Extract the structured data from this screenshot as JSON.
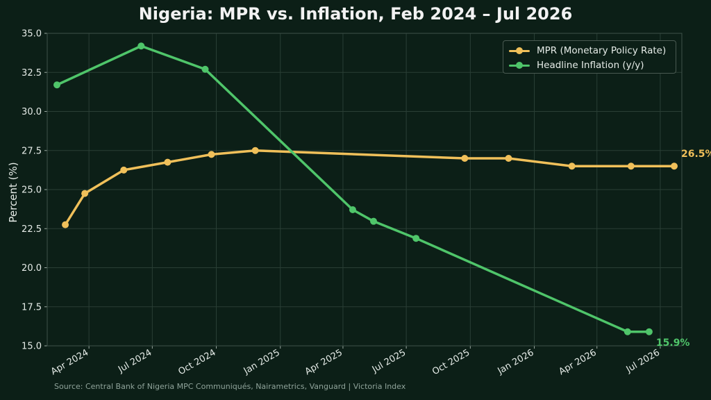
{
  "chart_data": {
    "type": "line",
    "title": "Nigeria: MPR vs. Inflation, Feb 2024 – Jul 2026",
    "xlabel": "",
    "ylabel": "Percent (%)",
    "ylim": [
      15.0,
      35.0
    ],
    "yticks": [
      "15.0",
      "17.5",
      "20.0",
      "22.5",
      "25.0",
      "27.5",
      "30.0",
      "32.5",
      "35.0"
    ],
    "xlim": [
      "2024-02-01",
      "2026-08-01"
    ],
    "xticks": [
      {
        "date": "2024-04-01",
        "label": "Apr 2024"
      },
      {
        "date": "2024-07-01",
        "label": "Jul 2024"
      },
      {
        "date": "2024-10-01",
        "label": "Oct 2024"
      },
      {
        "date": "2025-01-01",
        "label": "Jan 2025"
      },
      {
        "date": "2025-04-01",
        "label": "Apr 2025"
      },
      {
        "date": "2025-07-01",
        "label": "Jul 2025"
      },
      {
        "date": "2025-10-01",
        "label": "Oct 2025"
      },
      {
        "date": "2026-01-01",
        "label": "Jan 2026"
      },
      {
        "date": "2026-04-01",
        "label": "Apr 2026"
      },
      {
        "date": "2026-07-01",
        "label": "Jul 2026"
      }
    ],
    "grid": true,
    "legend_position": "top-right",
    "series": [
      {
        "name": "MPR (Monetary Policy Rate)",
        "color": "#f0c05a",
        "points": [
          {
            "x": "2024-02-27",
            "y": 22.75
          },
          {
            "x": "2024-03-26",
            "y": 24.75
          },
          {
            "x": "2024-05-21",
            "y": 26.25
          },
          {
            "x": "2024-07-23",
            "y": 26.75
          },
          {
            "x": "2024-09-24",
            "y": 27.25
          },
          {
            "x": "2024-11-26",
            "y": 27.5
          },
          {
            "x": "2025-09-23",
            "y": 27.0
          },
          {
            "x": "2025-11-25",
            "y": 27.0
          },
          {
            "x": "2026-02-24",
            "y": 26.5
          },
          {
            "x": "2026-05-20",
            "y": 26.5
          },
          {
            "x": "2026-07-21",
            "y": 26.5
          }
        ]
      },
      {
        "name": "Headline Inflation (y/y)",
        "color": "#4fc56a",
        "points": [
          {
            "x": "2024-02-15",
            "y": 31.7
          },
          {
            "x": "2024-06-15",
            "y": 34.19
          },
          {
            "x": "2024-09-15",
            "y": 32.7
          },
          {
            "x": "2025-04-15",
            "y": 23.71
          },
          {
            "x": "2025-05-15",
            "y": 22.97
          },
          {
            "x": "2025-07-15",
            "y": 21.88
          },
          {
            "x": "2026-05-15",
            "y": 15.9
          },
          {
            "x": "2026-06-15",
            "y": 15.9
          }
        ]
      }
    ],
    "annotations": [
      {
        "text": "26.5%",
        "series": 0,
        "color": "#f0c05a"
      },
      {
        "text": "15.9%",
        "series": 1,
        "color": "#4fc56a"
      }
    ],
    "source": "Source: Central Bank of Nigeria MPC Communiqués, Nairametrics, Vanguard  |  Victoria Index"
  }
}
